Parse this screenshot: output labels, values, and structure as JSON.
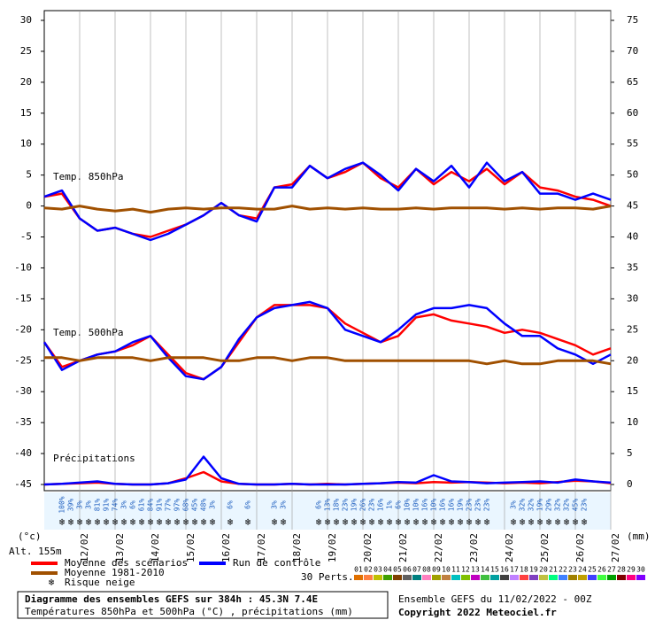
{
  "chart_data": {
    "type": "line",
    "annotations": [
      "Temp. 850hPa",
      "Temp. 500hPa",
      "Précipitations"
    ],
    "y_unit": "(°c)",
    "y2_unit": "(mm)",
    "altitude": "Alt. 155m",
    "x": [
      0,
      12,
      24,
      36,
      48,
      60,
      72,
      84,
      96,
      108,
      120,
      132,
      144,
      156,
      168,
      180,
      192,
      204,
      216,
      228,
      240,
      252,
      264,
      276,
      288,
      300,
      312,
      324,
      336,
      348,
      360,
      372,
      384
    ],
    "xlim": [
      0,
      384
    ],
    "xticks": [
      {
        "value": 24,
        "label": "12/02"
      },
      {
        "value": 48,
        "label": "13/02"
      },
      {
        "value": 72,
        "label": "14/02"
      },
      {
        "value": 96,
        "label": "15/02"
      },
      {
        "value": 120,
        "label": "16/02"
      },
      {
        "value": 144,
        "label": "17/02"
      },
      {
        "value": 168,
        "label": "18/02"
      },
      {
        "value": 192,
        "label": "19/02"
      },
      {
        "value": 216,
        "label": "20/02"
      },
      {
        "value": 240,
        "label": "21/02"
      },
      {
        "value": 264,
        "label": "22/02"
      },
      {
        "value": 288,
        "label": "23/02"
      },
      {
        "value": 312,
        "label": "24/02"
      },
      {
        "value": 336,
        "label": "25/02"
      },
      {
        "value": 360,
        "label": "26/02"
      },
      {
        "value": 384,
        "label": "27/02"
      }
    ],
    "ylim": [
      -45,
      30
    ],
    "yticks": [
      -45,
      -40,
      -35,
      -30,
      -25,
      -20,
      -15,
      -10,
      -5,
      0,
      5,
      10,
      15,
      20,
      25,
      30
    ],
    "y2lim": [
      0,
      75
    ],
    "y2ticks": [
      0,
      5,
      10,
      15,
      20,
      25,
      30,
      35,
      40,
      45,
      50,
      55,
      60,
      65,
      70,
      75
    ],
    "series": [
      {
        "name": "Moyenne des scénarios",
        "color": "#ff0000",
        "values": [
          1.5,
          2,
          -2,
          -4,
          -3.5,
          -4.5,
          -5,
          -4,
          -3,
          -1.5,
          0.5,
          -1.5,
          -2,
          3,
          3.5,
          6.5,
          4.5,
          5.5,
          7,
          4.5,
          3,
          6,
          3.5,
          5.5,
          4,
          6,
          3.5,
          5.5,
          3,
          2.5,
          1.5,
          1,
          0
        ]
      },
      {
        "name": "Run de contrôle",
        "color": "#0000ff",
        "values": [
          1.5,
          2.5,
          -2,
          -4,
          -3.5,
          -4.5,
          -5.5,
          -4.5,
          -3,
          -1.5,
          0.5,
          -1.5,
          -2.5,
          3,
          3,
          6.5,
          4.5,
          6,
          7,
          5,
          2.5,
          6,
          4,
          6.5,
          3,
          7,
          4,
          5.5,
          2,
          2,
          1,
          2,
          1
        ]
      },
      {
        "name": "Moyenne 1981-2010",
        "color": "#a05000",
        "values": [
          -0.3,
          -0.5,
          0,
          -0.5,
          -0.8,
          -0.5,
          -1,
          -0.5,
          -0.3,
          -0.5,
          -0.3,
          -0.3,
          -0.5,
          -0.5,
          0,
          -0.5,
          -0.3,
          -0.5,
          -0.3,
          -0.5,
          -0.5,
          -0.3,
          -0.5,
          -0.3,
          -0.3,
          -0.3,
          -0.5,
          -0.3,
          -0.5,
          -0.3,
          -0.3,
          -0.5,
          0
        ]
      },
      {
        "color": "#ff0000",
        "values": [
          -22,
          -26,
          -25,
          -24,
          -23.5,
          -22.5,
          -21,
          -24,
          -27,
          -28,
          -26,
          -22,
          -18,
          -16,
          -16,
          -16,
          -16.5,
          -19,
          -20.5,
          -22,
          -21,
          -18,
          -17.5,
          -18.5,
          -19,
          -19.5,
          -20.5,
          -20,
          -20.5,
          -21.5,
          -22.5,
          -24,
          -23
        ]
      },
      {
        "color": "#0000ff",
        "values": [
          -22,
          -26.5,
          -25,
          -24,
          -23.5,
          -22,
          -21,
          -24.5,
          -27.5,
          -28,
          -26,
          -21.5,
          -18,
          -16.5,
          -16,
          -15.5,
          -16.5,
          -20,
          -21,
          -22,
          -20,
          -17.5,
          -16.5,
          -16.5,
          -16,
          -16.5,
          -19,
          -21,
          -21,
          -23,
          -24,
          -25.5,
          -24
        ]
      },
      {
        "color": "#a05000",
        "values": [
          -24.5,
          -24.5,
          -25,
          -24.5,
          -24.5,
          -24.5,
          -25,
          -24.5,
          -24.5,
          -24.5,
          -25,
          -25,
          -24.5,
          -24.5,
          -25,
          -24.5,
          -24.5,
          -25,
          -25,
          -25,
          -25,
          -25,
          -25,
          -25,
          -25,
          -25.5,
          -25,
          -25.5,
          -25.5,
          -25,
          -25,
          -25,
          -25.5
        ]
      },
      {
        "color": "#ff0000",
        "axis": "y2",
        "values": [
          0,
          0.1,
          0.2,
          0.3,
          0.1,
          0,
          0,
          0.2,
          1,
          2,
          0.5,
          0.1,
          0,
          0,
          0.1,
          0,
          0.1,
          0,
          0.1,
          0.2,
          0.3,
          0.2,
          0.4,
          0.3,
          0.4,
          0.3,
          0.2,
          0.3,
          0.2,
          0.4,
          0.6,
          0.5,
          0.2
        ]
      },
      {
        "color": "#0000ff",
        "axis": "y2",
        "values": [
          0,
          0.1,
          0.3,
          0.5,
          0.1,
          0,
          0,
          0.2,
          0.8,
          4.5,
          1,
          0.1,
          0,
          0,
          0.1,
          0,
          0,
          0,
          0.1,
          0.2,
          0.4,
          0.3,
          1.5,
          0.5,
          0.4,
          0.2,
          0.3,
          0.4,
          0.5,
          0.3,
          0.8,
          0.5,
          0.3
        ]
      }
    ],
    "snow_legend": "Risque neige",
    "snow_risk": {
      "hours": [
        12,
        18,
        24,
        30,
        36,
        42,
        48,
        54,
        60,
        66,
        72,
        78,
        84,
        90,
        96,
        102,
        108,
        114,
        126,
        138,
        156,
        162,
        186,
        192,
        198,
        204,
        210,
        216,
        222,
        228,
        234,
        240,
        246,
        252,
        258,
        264,
        270,
        276,
        282,
        288,
        294,
        300,
        318,
        324,
        330,
        336,
        342,
        348,
        354,
        360,
        366
      ],
      "values": [
        100,
        39,
        3,
        3,
        81,
        91,
        74,
        3,
        6,
        61,
        84,
        91,
        77,
        97,
        68,
        45,
        48,
        3,
        6,
        6,
        3,
        3,
        6,
        13,
        18,
        23,
        19,
        26,
        23,
        16,
        1,
        6,
        10,
        10,
        16,
        10,
        16,
        16,
        19,
        23,
        23,
        23,
        3,
        32,
        32,
        19,
        29,
        32,
        32,
        45,
        23
      ],
      "value_labels": [
        "100%",
        "39%",
        "3%",
        "3%",
        "81%",
        "91%",
        "74%",
        "3%",
        "6%",
        "61%",
        "84%",
        "91%",
        "77%",
        "97%",
        "68%",
        "45%",
        "48%",
        "3%",
        "6%",
        "6%",
        "3%",
        "3%",
        "6%",
        "13%",
        "18%",
        "23%",
        "19%",
        "26%",
        "23%",
        "16%",
        "1%",
        "6%",
        "10%",
        "10%",
        "16%",
        "10%",
        "16%",
        "16%",
        "19%",
        "23%",
        "23%",
        "23%",
        "3%",
        "32%",
        "32%",
        "19%",
        "29%",
        "32%",
        "32%",
        "45%",
        "23%"
      ]
    },
    "perturbations": {
      "label": "30 Perts.",
      "names": [
        "01",
        "02",
        "03",
        "04",
        "05",
        "06",
        "07",
        "08",
        "09",
        "10",
        "11",
        "12",
        "13",
        "14",
        "15",
        "16",
        "17",
        "18",
        "19",
        "20",
        "21",
        "22",
        "23",
        "24",
        "25",
        "26",
        "27",
        "28",
        "29",
        "30"
      ],
      "colors": [
        "#e07000",
        "#ff8040",
        "#c0c000",
        "#40a000",
        "#804000",
        "#606060",
        "#008080",
        "#ff80c0",
        "#a0a000",
        "#c08040",
        "#00c0c0",
        "#80c000",
        "#c000c0",
        "#40c040",
        "#00a0a0",
        "#404040",
        "#c080ff",
        "#ff4040",
        "#8040c0",
        "#c0c040",
        "#00ff80",
        "#4080ff",
        "#a08000",
        "#c0a000",
        "#4040ff",
        "#40ff40",
        "#00a000",
        "#800000",
        "#ff0080",
        "#8000ff"
      ]
    },
    "footer": {
      "title": "Diagramme des ensembles GEFS sur 384h : 45.3N 7.4E",
      "subtitle": "Températures 850hPa et 500hPa (°C) , précipitations (mm)",
      "run": "Ensemble GEFS du 11/02/2022 - 00Z",
      "copyright": "Copyright 2022 Meteociel.fr"
    }
  }
}
